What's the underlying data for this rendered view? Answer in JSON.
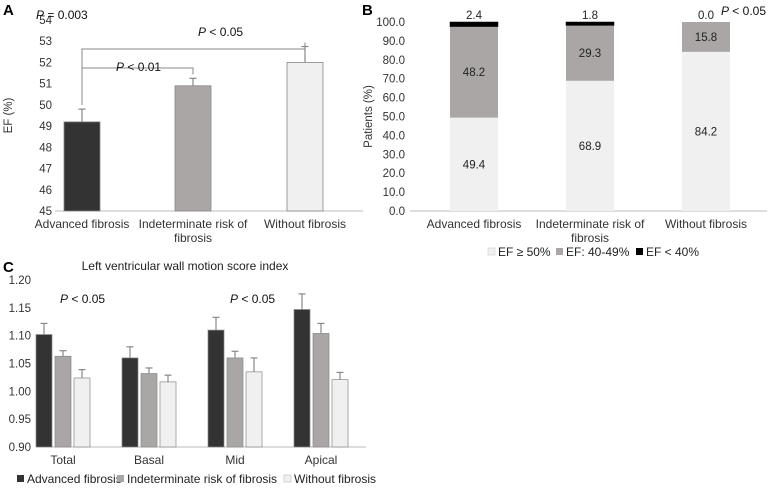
{
  "chart_data": [
    {
      "panel": "A",
      "type": "bar",
      "ylabel": "EF (%)",
      "ylim": [
        45,
        54
      ],
      "yticks": [
        45,
        46,
        47,
        48,
        49,
        50,
        51,
        52,
        53,
        54
      ],
      "categories": [
        "Advanced fibrosis",
        "Indeterminate risk of fibrosis",
        "Without fibrosis"
      ],
      "values": [
        49.2,
        50.9,
        52.0
      ],
      "errors": [
        0.6,
        0.35,
        0.75
      ],
      "colors": [
        "#333333",
        "#aaa6a6",
        "#f0f0f0"
      ],
      "annotations": [
        {
          "label": "P",
          "text": " = 0.003"
        },
        {
          "label": "P",
          "text": " < 0.01"
        },
        {
          "label": "P",
          "text": " < 0.05"
        }
      ]
    },
    {
      "panel": "B",
      "type": "bar",
      "stacked": true,
      "ylabel": "Patients (%)",
      "ylim": [
        0,
        100
      ],
      "yticks": [
        "0.0",
        "10.0",
        "20.0",
        "30.0",
        "40.0",
        "50.0",
        "60.0",
        "70.0",
        "80.0",
        "90.0",
        "100.0"
      ],
      "categories": [
        "Advanced fibrosis",
        "Indeterminate risk of fibrosis",
        "Without fibrosis"
      ],
      "series": [
        {
          "name": "EF ≥ 50%",
          "values": [
            49.4,
            68.9,
            84.2
          ],
          "labels": [
            "49.4",
            "68.9",
            "84.2"
          ],
          "color": "#f0f0f0"
        },
        {
          "name": "EF: 40-49%",
          "values": [
            48.2,
            29.3,
            15.8
          ],
          "labels": [
            "48.2",
            "29.3",
            "15.8"
          ],
          "color": "#aaa6a6"
        },
        {
          "name": "EF < 40%",
          "values": [
            2.4,
            1.8,
            0.0
          ],
          "labels": [
            "2.4",
            "1.8",
            "0.0"
          ],
          "color": "#000000"
        }
      ],
      "annotation": {
        "label": "P",
        "text": " < 0.05"
      },
      "legend_position": "bottom"
    },
    {
      "panel": "C",
      "type": "bar",
      "title": "Left ventricular wall motion score index",
      "ylim": [
        0.9,
        1.2
      ],
      "yticks": [
        "0.90",
        "0.95",
        "1.00",
        "1.05",
        "1.10",
        "1.15",
        "1.20"
      ],
      "categories": [
        "Total",
        "Basal",
        "Mid",
        "Apical"
      ],
      "series": [
        {
          "name": "Advanced fibrosis",
          "values": [
            1.102,
            1.06,
            1.11,
            1.147
          ],
          "errors": [
            0.02,
            0.02,
            0.023,
            0.028
          ],
          "color": "#333333"
        },
        {
          "name": "Indeterminate risk of fibrosis",
          "values": [
            1.063,
            1.032,
            1.06,
            1.104
          ],
          "errors": [
            0.01,
            0.01,
            0.012,
            0.018
          ],
          "color": "#aaa6a6"
        },
        {
          "name": "Without fibrosis",
          "values": [
            1.024,
            1.017,
            1.035,
            1.021
          ],
          "errors": [
            0.015,
            0.012,
            0.025,
            0.013
          ],
          "color": "#f0f0f0"
        }
      ],
      "annotations": [
        {
          "label": "P",
          "text": " < 0.05"
        },
        {
          "label": "P",
          "text": " < 0.05"
        }
      ],
      "legend_position": "bottom"
    }
  ]
}
